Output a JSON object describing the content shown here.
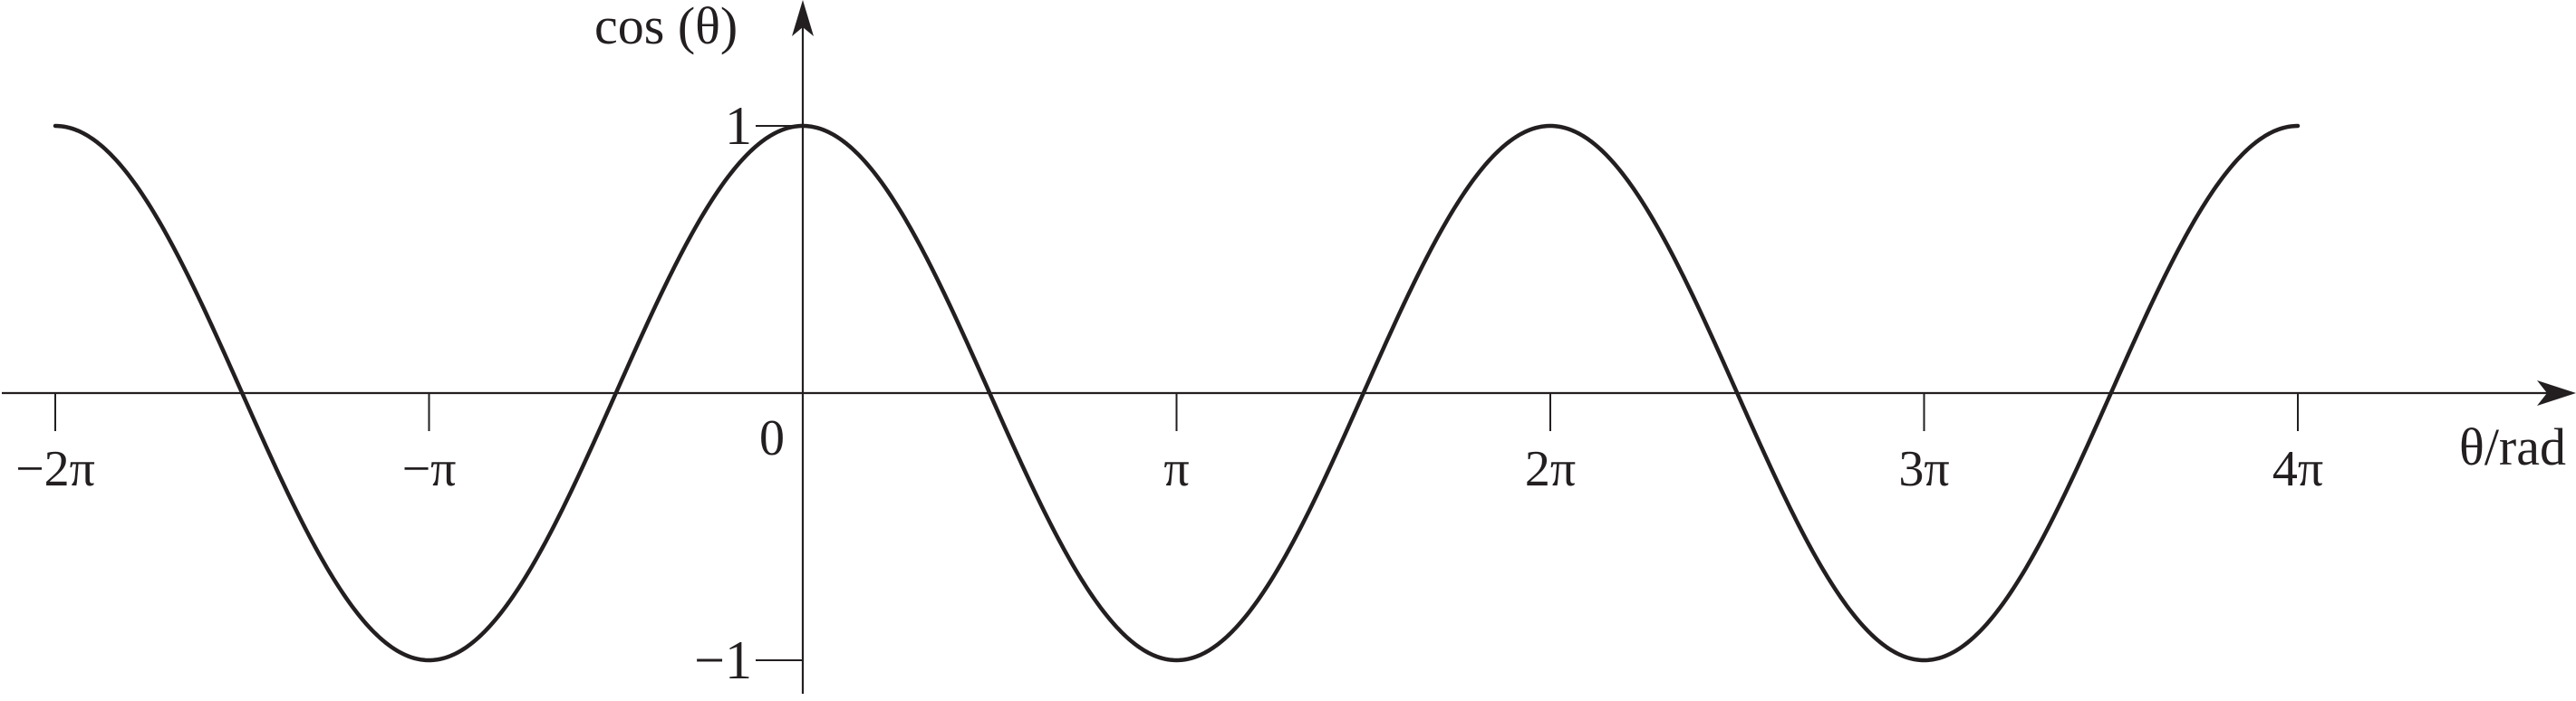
{
  "chart_data": {
    "type": "line",
    "function": "cos",
    "ylabel": "cos (θ)",
    "xlabel": "θ/rad",
    "x_range": [
      -6.2832,
      12.5664
    ],
    "y_range": [
      -1,
      1
    ],
    "origin_label": "0",
    "x_ticks": [
      {
        "value": -6.2832,
        "label": "−2π"
      },
      {
        "value": -3.1416,
        "label": "−π"
      },
      {
        "value": 3.1416,
        "label": "π"
      },
      {
        "value": 6.2832,
        "label": "2π"
      },
      {
        "value": 9.4248,
        "label": "3π"
      },
      {
        "value": 12.5664,
        "label": "4π"
      }
    ],
    "y_ticks": [
      {
        "value": 1,
        "label": "1"
      },
      {
        "value": -1,
        "label": "−1"
      }
    ],
    "grid": false,
    "colors": {
      "curve": "#231f20",
      "axes": "#231f20",
      "text": "#231f20"
    }
  }
}
